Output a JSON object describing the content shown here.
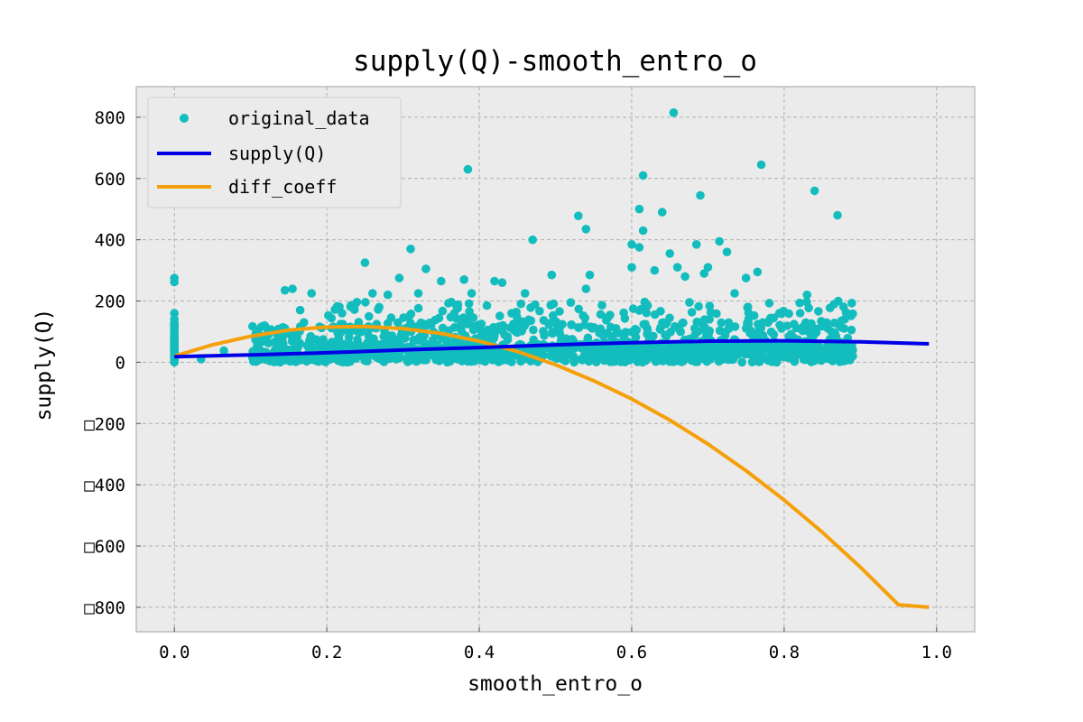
{
  "chart_data": {
    "type": "scatter",
    "title": "supply(Q)-smooth_entro_o",
    "xlabel": "smooth_entro_o",
    "ylabel": "supply(Q)",
    "xlim": [
      -0.05,
      1.05
    ],
    "ylim": [
      -880,
      900
    ],
    "xticks": [
      0.0,
      0.2,
      0.4,
      0.6,
      0.8,
      1.0
    ],
    "xtick_labels": [
      "0.0",
      "0.2",
      "0.4",
      "0.6",
      "0.8",
      "1.0"
    ],
    "yticks": [
      800,
      600,
      400,
      200,
      0,
      -200,
      -400,
      -600,
      -800
    ],
    "ytick_labels": [
      "800",
      "600",
      "400",
      "200",
      "0",
      "□200",
      "□400",
      "□600",
      "□800"
    ],
    "grid": true,
    "legend_position": "top-left",
    "colors": {
      "background": "#ebebeb",
      "points": "#14bdbd",
      "supply": "#0000e6",
      "diff": "#f5a00a"
    },
    "series": [
      {
        "name": "original_data",
        "kind": "points",
        "outliers": [
          [
            0.0,
            275
          ],
          [
            0.0,
            262
          ],
          [
            0.0,
            160
          ],
          [
            0.0,
            140
          ],
          [
            0.0,
            125
          ],
          [
            0.0,
            110
          ],
          [
            0.0,
            95
          ],
          [
            0.0,
            80
          ],
          [
            0.0,
            60
          ],
          [
            0.0,
            40
          ],
          [
            0.0,
            20
          ],
          [
            0.0,
            0
          ],
          [
            0.035,
            10
          ],
          [
            0.065,
            38
          ],
          [
            0.115,
            85
          ],
          [
            0.165,
            170
          ],
          [
            0.145,
            235
          ],
          [
            0.155,
            240
          ],
          [
            0.18,
            225
          ],
          [
            0.17,
            130
          ],
          [
            0.25,
            325
          ],
          [
            0.26,
            225
          ],
          [
            0.28,
            220
          ],
          [
            0.31,
            370
          ],
          [
            0.295,
            275
          ],
          [
            0.33,
            305
          ],
          [
            0.32,
            225
          ],
          [
            0.35,
            265
          ],
          [
            0.38,
            270
          ],
          [
            0.385,
            630
          ],
          [
            0.39,
            225
          ],
          [
            0.42,
            265
          ],
          [
            0.43,
            260
          ],
          [
            0.47,
            400
          ],
          [
            0.46,
            225
          ],
          [
            0.495,
            285
          ],
          [
            0.53,
            478
          ],
          [
            0.54,
            435
          ],
          [
            0.545,
            285
          ],
          [
            0.54,
            240
          ],
          [
            0.6,
            385
          ],
          [
            0.6,
            310
          ],
          [
            0.61,
            500
          ],
          [
            0.615,
            610
          ],
          [
            0.615,
            430
          ],
          [
            0.61,
            375
          ],
          [
            0.63,
            300
          ],
          [
            0.64,
            490
          ],
          [
            0.65,
            355
          ],
          [
            0.655,
            815
          ],
          [
            0.66,
            310
          ],
          [
            0.67,
            280
          ],
          [
            0.685,
            385
          ],
          [
            0.69,
            545
          ],
          [
            0.695,
            290
          ],
          [
            0.7,
            310
          ],
          [
            0.715,
            395
          ],
          [
            0.725,
            360
          ],
          [
            0.75,
            275
          ],
          [
            0.765,
            295
          ],
          [
            0.77,
            645
          ],
          [
            0.83,
            220
          ],
          [
            0.84,
            560
          ],
          [
            0.87,
            480
          ],
          [
            0.875,
            135
          ],
          [
            0.86,
            75
          ],
          [
            0.89,
            40
          ],
          [
            0.89,
            20
          ],
          [
            0.88,
            5
          ],
          [
            0.735,
            225
          ],
          [
            0.52,
            195
          ],
          [
            0.41,
            185
          ],
          [
            0.22,
            160
          ]
        ]
      },
      {
        "name": "supply(Q)",
        "kind": "line",
        "x": [
          0.0,
          0.1,
          0.2,
          0.3,
          0.4,
          0.5,
          0.6,
          0.7,
          0.8,
          0.9,
          0.99
        ],
        "y": [
          18,
          24,
          31,
          40,
          48,
          57,
          64,
          69,
          70,
          67,
          60
        ]
      },
      {
        "name": "diff_coeff",
        "kind": "line",
        "x": [
          0.0,
          0.05,
          0.1,
          0.15,
          0.2,
          0.25,
          0.3,
          0.35,
          0.4,
          0.45,
          0.5,
          0.55,
          0.6,
          0.65,
          0.7,
          0.75,
          0.8,
          0.85,
          0.9,
          0.95,
          0.99
        ],
        "y": [
          20,
          57,
          85,
          105,
          115,
          117,
          110,
          94,
          69,
          35,
          -8,
          -60,
          -120,
          -189,
          -267,
          -354,
          -450,
          -555,
          -669,
          -792,
          -800
        ]
      }
    ]
  }
}
